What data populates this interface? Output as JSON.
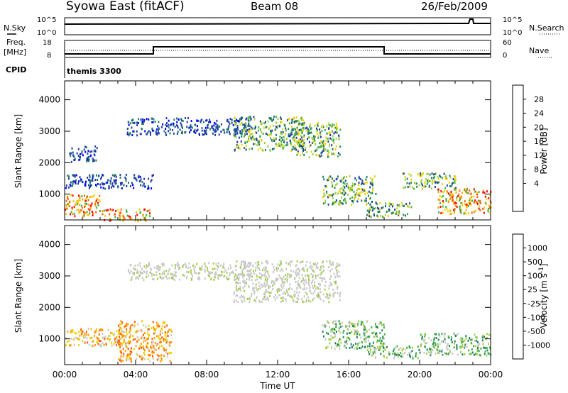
{
  "header": {
    "title": "Syowa East (fitACF)",
    "beam": "Beam 08",
    "date": "26/Feb/2009"
  },
  "panels": {
    "nsky": {
      "label": "N.Sky",
      "right_label": "N.Search",
      "left_ticks": [
        "10^5",
        "10^0"
      ],
      "right_ticks": [
        "10^5",
        "10^0"
      ]
    },
    "freq": {
      "label_line1": "Freq.",
      "label_line2": "[MHz]",
      "left_ticks": [
        "18",
        "8"
      ],
      "right_label": "Nave",
      "right_ticks": [
        "60",
        "0"
      ]
    },
    "cpid": {
      "label": "CPID",
      "value": "themis 3300"
    }
  },
  "chart_data": [
    {
      "type": "heatmap",
      "name": "power",
      "ylabel": "Slant Range [km]",
      "xlabel": "",
      "xlim": [
        0,
        24
      ],
      "ylim": [
        180,
        4600
      ],
      "yticks": [
        1000,
        2000,
        3000,
        4000
      ],
      "colorbar": {
        "label": "Power [dB]",
        "ticks": [
          "28",
          "24",
          "20",
          "16",
          "12",
          "8",
          "4"
        ],
        "colors": [
          "#ff0000",
          "#ff6000",
          "#ffa000",
          "#f0d000",
          "#a0d040",
          "#40b040",
          "#208060",
          "#2040a0",
          "#0000ff"
        ]
      },
      "regions": [
        {
          "t": [
            3.5,
            10.5
          ],
          "r": [
            2900,
            3450
          ],
          "level": "low"
        },
        {
          "t": [
            9.5,
            13.5
          ],
          "r": [
            2400,
            3500
          ],
          "level": "mid"
        },
        {
          "t": [
            13.0,
            15.5
          ],
          "r": [
            2200,
            3300
          ],
          "level": "mid"
        },
        {
          "t": [
            0.2,
            1.8
          ],
          "r": [
            2050,
            2550
          ],
          "level": "low"
        },
        {
          "t": [
            0.0,
            5.0
          ],
          "r": [
            1200,
            1650
          ],
          "level": "low"
        },
        {
          "t": [
            0.0,
            2.0
          ],
          "r": [
            300,
            1000
          ],
          "level": "high"
        },
        {
          "t": [
            2.0,
            4.8
          ],
          "r": [
            180,
            550
          ],
          "level": "high"
        },
        {
          "t": [
            14.5,
            17.5
          ],
          "r": [
            700,
            1600
          ],
          "level": "mid"
        },
        {
          "t": [
            17.0,
            19.5
          ],
          "r": [
            300,
            750
          ],
          "level": "mid"
        },
        {
          "t": [
            19.0,
            22.0
          ],
          "r": [
            1200,
            1700
          ],
          "level": "mid"
        },
        {
          "t": [
            21.0,
            24.0
          ],
          "r": [
            400,
            1200
          ],
          "level": "high"
        }
      ]
    },
    {
      "type": "heatmap",
      "name": "velocity",
      "ylabel": "Slant Range [km]",
      "xlabel": "Time UT",
      "xlim": [
        0,
        24
      ],
      "ylim": [
        180,
        4600
      ],
      "xticks": [
        "00:00",
        "04:00",
        "08:00",
        "12:00",
        "16:00",
        "20:00",
        "00:00"
      ],
      "yticks": [
        1000,
        2000,
        3000,
        4000
      ],
      "colorbar": {
        "label": "Velocity [m s^-1]",
        "ticks": [
          "1000",
          "500",
          "100",
          "25",
          "-25",
          "-100",
          "-500",
          "-1000"
        ],
        "colors": [
          "#2040c0",
          "#208060",
          "#40b040",
          "#a0d040",
          "#c8c8c8",
          "#f0d000",
          "#ffa000",
          "#ff6000",
          "#ff0000"
        ]
      },
      "regions": [
        {
          "t": [
            3.5,
            10.5
          ],
          "r": [
            2900,
            3450
          ],
          "level": "ground"
        },
        {
          "t": [
            9.5,
            15.5
          ],
          "r": [
            2200,
            3500
          ],
          "level": "ground"
        },
        {
          "t": [
            0.0,
            3.5
          ],
          "r": [
            800,
            1350
          ],
          "level": "neg"
        },
        {
          "t": [
            3.0,
            6.0
          ],
          "r": [
            300,
            1600
          ],
          "level": "neg"
        },
        {
          "t": [
            14.5,
            18.0
          ],
          "r": [
            700,
            1600
          ],
          "level": "pos"
        },
        {
          "t": [
            17.0,
            20.0
          ],
          "r": [
            400,
            800
          ],
          "level": "pos"
        },
        {
          "t": [
            20.0,
            24.0
          ],
          "r": [
            500,
            1200
          ],
          "level": "pos"
        }
      ]
    }
  ]
}
